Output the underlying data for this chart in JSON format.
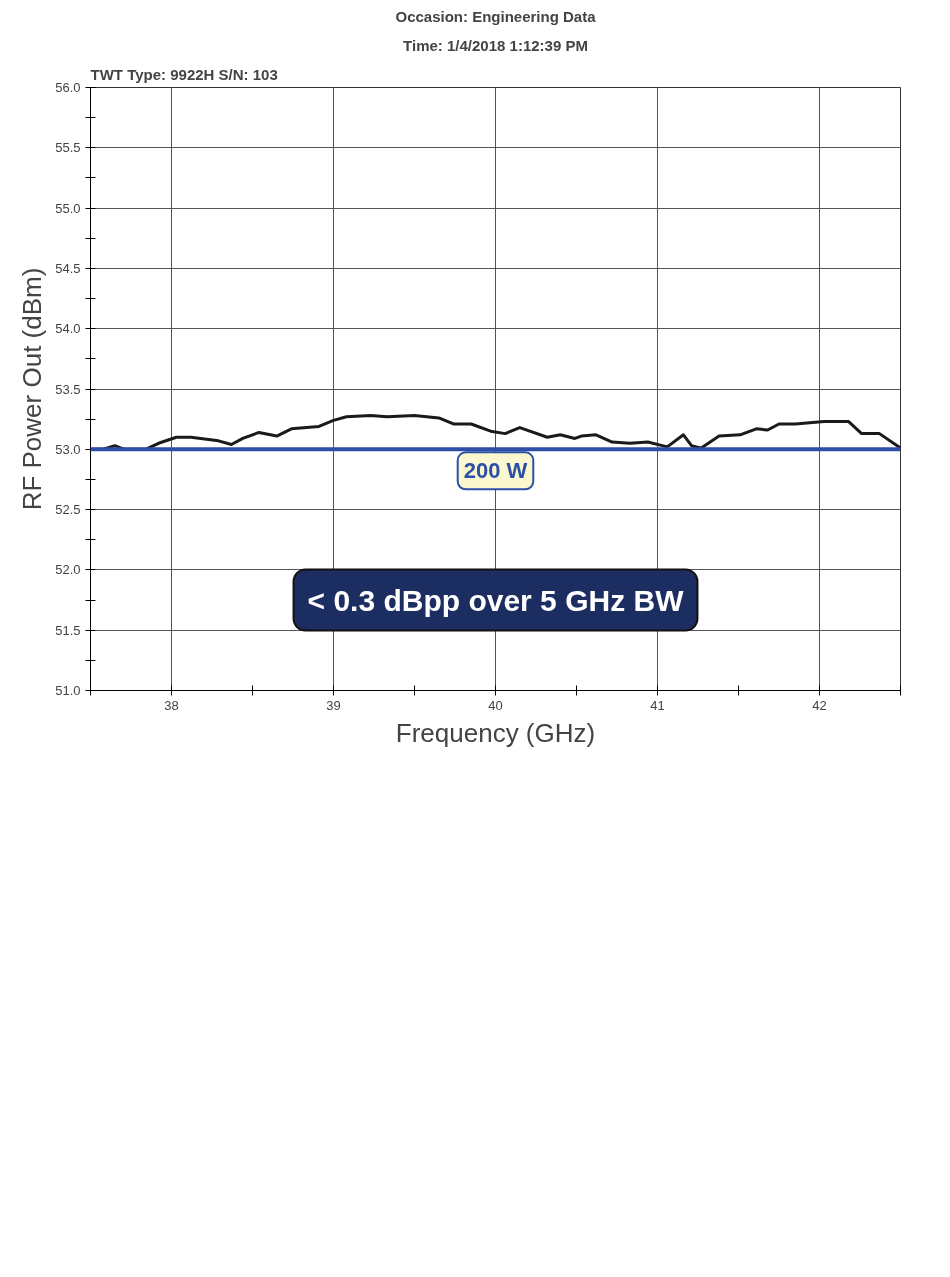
{
  "chart_data": {
    "type": "line",
    "xlabel": "Frequency (GHz)",
    "ylabel": "RF Power Out (dBm)",
    "annotations": [
      "TWT Type: 9922H",
      "S/N: 103",
      "Occasion: Engineering Data",
      "Time: 1/4/2018 1:12:39 PM",
      "< 0.3 dBpp over 5 GHz BW"
    ],
    "series": [
      {
        "color": "#1a1a1a",
        "x": [
          37.5,
          37.58,
          37.65,
          37.71,
          37.84,
          37.92,
          38.03,
          38.12,
          38.29,
          38.37,
          38.44,
          38.54,
          38.65,
          38.74,
          38.91,
          39.0,
          39.08,
          39.23,
          39.33,
          39.5,
          39.65,
          39.74,
          39.85,
          39.97,
          40.06,
          40.15,
          40.32,
          40.4,
          40.49,
          40.53,
          40.62,
          40.72,
          40.83,
          40.94,
          41.06,
          41.16,
          41.21,
          41.27,
          41.38,
          41.51,
          41.61,
          41.68,
          41.75,
          41.85,
          42.03,
          42.18,
          42.26,
          42.37,
          42.5
        ],
        "values": [
          53.0,
          53.0,
          53.03,
          53.0,
          53.0,
          53.05,
          53.1,
          53.1,
          53.07,
          53.04,
          53.09,
          53.14,
          53.11,
          53.17,
          53.19,
          53.24,
          53.27,
          53.28,
          53.27,
          53.28,
          53.26,
          53.21,
          53.21,
          53.15,
          53.13,
          53.18,
          53.1,
          53.12,
          53.09,
          53.11,
          53.12,
          53.06,
          53.05,
          53.06,
          53.02,
          53.12,
          53.03,
          53.01,
          53.11,
          53.12,
          53.17,
          53.16,
          53.21,
          53.21,
          53.23,
          53.23,
          53.13,
          53.13,
          53.01
        ]
      }
    ],
    "xlim": [
      37.5,
      42.5
    ],
    "xticks": [
      38,
      39,
      40,
      41,
      42,
      {
        "value": 37.5,
        "label": null
      },
      {
        "value": 38.5,
        "label": null
      },
      {
        "value": 39.5,
        "label": null
      },
      {
        "value": 40.5,
        "label": null
      },
      {
        "value": 41.5,
        "label": null
      },
      {
        "value": 42.5,
        "label": null
      }
    ],
    "ylim": [
      51,
      56
    ],
    "yticks": [
      {
        "value": 51,
        "label": "51.0"
      },
      51.5,
      {
        "value": 52,
        "label": "52.0"
      },
      52.5,
      {
        "value": 53,
        "label": "53.0"
      },
      53.5,
      {
        "value": 54,
        "label": "54.0"
      },
      54.5,
      {
        "value": 55,
        "label": "55.0"
      },
      55.5,
      {
        "value": 56,
        "label": "56.0"
      },
      {
        "value": 51.25,
        "label": null
      },
      {
        "value": 51.75,
        "label": null
      },
      {
        "value": 52.25,
        "label": null
      },
      {
        "value": 52.75,
        "label": null
      },
      {
        "value": 53.25,
        "label": null
      },
      {
        "value": 53.75,
        "label": null
      },
      {
        "value": 54.25,
        "label": null
      },
      {
        "value": 54.75,
        "label": null
      },
      {
        "value": 55.25,
        "label": null
      },
      {
        "value": 55.75,
        "label": null
      }
    ],
    "ref_lines": [
      {
        "axis": "y",
        "value": 53.0,
        "label": "200 W",
        "color": "#2e4fa8"
      }
    ],
    "grid": true,
    "marker": "none",
    "line_style": "solid"
  }
}
